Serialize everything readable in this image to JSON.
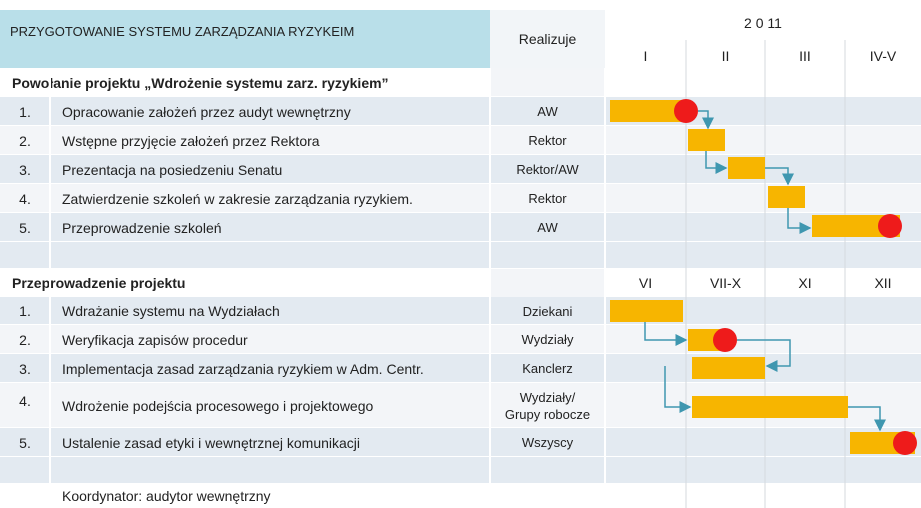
{
  "header": {
    "title": "PRZYGOTOWANIE SYSTEMU ZARZĄDZANIA RYZYKEIM",
    "realizuje": "Realizuje",
    "year": "2 0 11",
    "periods": [
      "I",
      "II",
      "III",
      "IV-V"
    ]
  },
  "sections": [
    {
      "title": "Powołanie projektu „Wdrożenie systemu zarz. ryzykiem”",
      "rows": [
        {
          "num": "1.",
          "task": "Opracowanie założeń przez audyt wewnętrzny",
          "who": [
            "AW"
          ]
        },
        {
          "num": "2.",
          "task": "Wstępne przyjęcie założeń przez Rektora",
          "who": [
            "Rektor"
          ]
        },
        {
          "num": "3.",
          "task": "Prezentacja na posiedzeniu Senatu",
          "who": [
            "Rektor/AW"
          ]
        },
        {
          "num": "4.",
          "task": "Zatwierdzenie szkoleń w zakresie zarządzania ryzykiem.",
          "who": [
            "Rektor"
          ]
        },
        {
          "num": "5.",
          "task": "Przeprowadzenie szkoleń",
          "who": [
            "AW"
          ]
        }
      ]
    },
    {
      "title": "Przeprowadzenie projektu",
      "periods": [
        "VI",
        "VII-X",
        "XI",
        "XII"
      ],
      "rows": [
        {
          "num": "1.",
          "task": "Wdrażanie systemu na Wydziałach",
          "who": [
            "Dziekani"
          ]
        },
        {
          "num": "2.",
          "task": "Weryfikacja zapisów procedur",
          "who": [
            "Wydziały"
          ]
        },
        {
          "num": "3.",
          "task": "Implementacja zasad zarządzania ryzykiem w Adm. Centr.",
          "who": [
            "Kanclerz"
          ]
        },
        {
          "num": "4.",
          "task": "Wdrożenie podejścia procesowego i projektowego",
          "who": [
            "Wydziały/",
            "Grupy robocze"
          ]
        },
        {
          "num": "5.",
          "task": "Ustalenie zasad etyki i wewnętrznej komunikacji",
          "who": [
            "Wszyscy"
          ]
        }
      ]
    }
  ],
  "footer": "Koordynator: audytor wewnętrzny"
}
